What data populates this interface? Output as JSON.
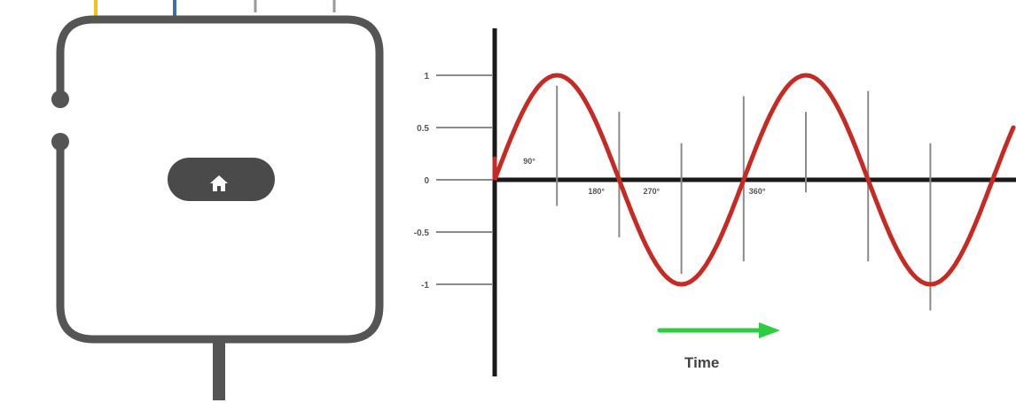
{
  "device": {
    "wire_colors": [
      "#f2c21b",
      "#3d6fb0",
      "#9a9a9a",
      "#9a9a9a"
    ],
    "icon": "home-icon",
    "body_color": "#555555",
    "pill_color": "#4a4a4a"
  },
  "chart_data": {
    "type": "line",
    "series": [
      {
        "function": "sine",
        "color": "#c62a22",
        "cycles": 2,
        "amplitude": 1
      }
    ],
    "ytick_labels": [
      "1",
      "0.5",
      "0",
      "-0.5",
      "-1"
    ],
    "ytick_values": [
      1,
      0.5,
      0,
      -0.5,
      -1
    ],
    "ylim": [
      -1,
      1
    ],
    "angle_labels": [
      {
        "text": "90°",
        "angle": 90
      },
      {
        "text": "180°",
        "angle": 180
      },
      {
        "text": "270°",
        "angle": 270
      },
      {
        "text": "360°",
        "angle": 360
      }
    ],
    "xlabel": "Time",
    "arrow_color": "#2ecc40",
    "grid": false
  }
}
